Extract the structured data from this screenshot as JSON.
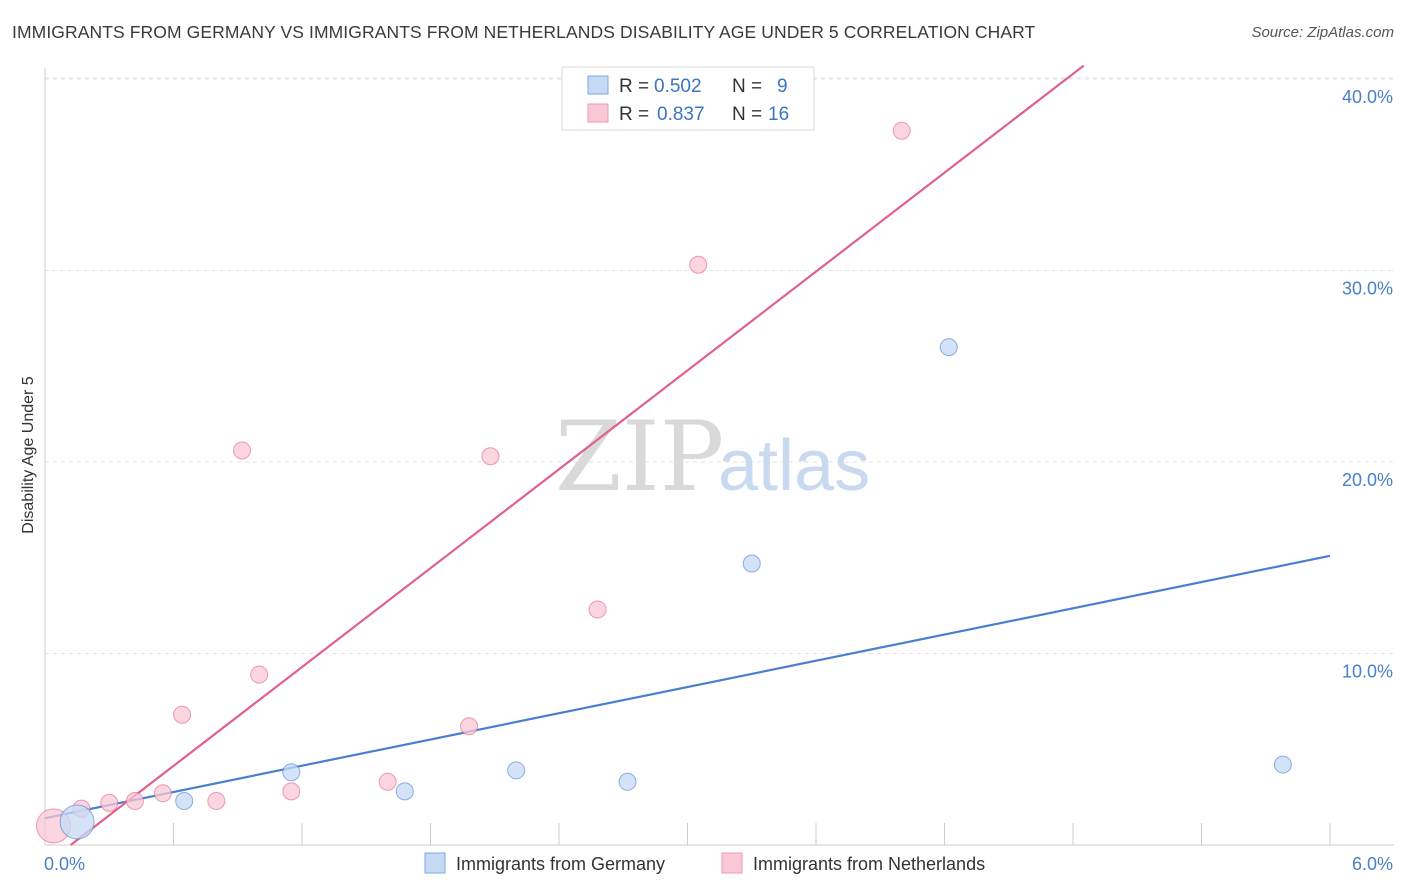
{
  "title": "IMMIGRANTS FROM GERMANY VS IMMIGRANTS FROM NETHERLANDS DISABILITY AGE UNDER 5 CORRELATION CHART",
  "source": "Source: ZipAtlas.com",
  "watermark": {
    "zip": "ZIP",
    "atlas": "atlas"
  },
  "legend": {
    "rows": [
      {
        "r_label": "R =",
        "r_value": "0.502",
        "n_label": "N =",
        "n_value": "9",
        "color": "#a9c8f0"
      },
      {
        "r_label": "R =",
        "r_value": "0.837",
        "n_label": "N =",
        "n_value": "16",
        "color": "#f7b6c8"
      }
    ]
  },
  "chart_data": {
    "type": "scatter",
    "xlabel": "",
    "ylabel": "Disability Age Under 5",
    "xlim": [
      0,
      6
    ],
    "ylim": [
      0,
      40
    ],
    "x_tick_labels": [
      {
        "value": 0,
        "label": "0.0%"
      },
      {
        "value": 6,
        "label": "6.0%"
      }
    ],
    "y_tick_labels": [
      {
        "value": 10,
        "label": "10.0%"
      },
      {
        "value": 20,
        "label": "20.0%"
      },
      {
        "value": 30,
        "label": "30.0%"
      },
      {
        "value": 40,
        "label": "40.0%"
      }
    ],
    "grid": true,
    "series": [
      {
        "name": "Immigrants from Germany",
        "color": "#4a7fd0",
        "fill": "#c5daf5",
        "points": [
          {
            "x": 0.15,
            "y": 1.2,
            "size": "large"
          },
          {
            "x": 0.65,
            "y": 2.3
          },
          {
            "x": 1.15,
            "y": 3.8
          },
          {
            "x": 1.68,
            "y": 2.8
          },
          {
            "x": 2.2,
            "y": 3.9
          },
          {
            "x": 2.72,
            "y": 3.3
          },
          {
            "x": 3.3,
            "y": 14.7
          },
          {
            "x": 4.22,
            "y": 26.0
          },
          {
            "x": 5.78,
            "y": 4.2
          }
        ],
        "trend": {
          "x1": 0.0,
          "y1": 1.4,
          "x2": 6.0,
          "y2": 15.1
        }
      },
      {
        "name": "Immigrants from Netherlands",
        "color": "#e0628a",
        "fill": "#f9c7d5",
        "points": [
          {
            "x": 0.04,
            "y": 1.0,
            "size": "large"
          },
          {
            "x": 0.17,
            "y": 1.9
          },
          {
            "x": 0.3,
            "y": 2.2
          },
          {
            "x": 0.42,
            "y": 2.3
          },
          {
            "x": 0.55,
            "y": 2.7
          },
          {
            "x": 0.64,
            "y": 6.8
          },
          {
            "x": 0.8,
            "y": 2.3
          },
          {
            "x": 0.92,
            "y": 20.6
          },
          {
            "x": 1.0,
            "y": 8.9
          },
          {
            "x": 1.15,
            "y": 2.8
          },
          {
            "x": 1.6,
            "y": 3.3
          },
          {
            "x": 1.98,
            "y": 6.2
          },
          {
            "x": 2.08,
            "y": 20.3
          },
          {
            "x": 2.58,
            "y": 12.3
          },
          {
            "x": 3.05,
            "y": 30.3
          },
          {
            "x": 4.0,
            "y": 37.3
          }
        ],
        "trend": {
          "x1": 0.12,
          "y1": 0.0,
          "x2": 4.85,
          "y2": 40.7
        }
      }
    ]
  }
}
